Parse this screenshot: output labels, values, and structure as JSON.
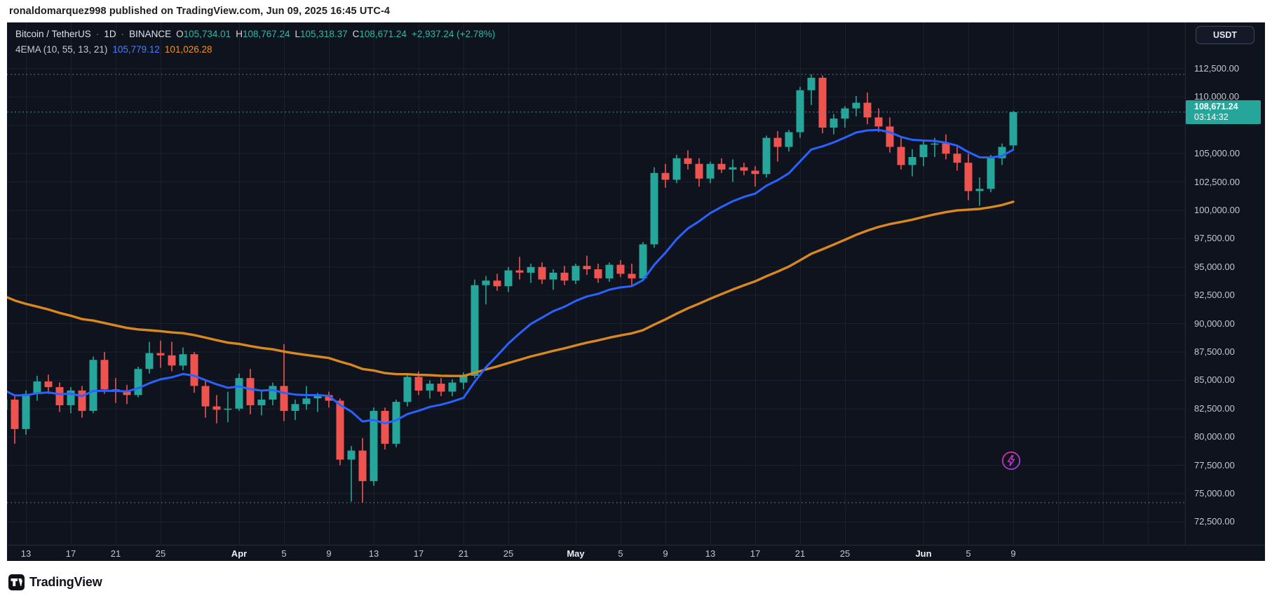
{
  "publish_bar": {
    "text": "ronaldomarquez998 published on TradingView.com, Jun 09, 2025 16:45 UTC-4"
  },
  "header": {
    "symbol": "Bitcoin / TetherUS",
    "sep": "·",
    "interval": "1D",
    "exchange": "BINANCE",
    "ohlc": {
      "o_label": "O",
      "o": "105,734.01",
      "h_label": "H",
      "h": "108,767.24",
      "l_label": "L",
      "l": "105,318.37",
      "c_label": "C",
      "c": "108,671.24",
      "change": "+2,937.24 (+2.78%)"
    },
    "indicator": {
      "label": "4EMA (10, 55, 13, 21)",
      "value_fast": "105,779.12",
      "value_slow": "101,026.28"
    }
  },
  "price_scale": {
    "currency_button": "USDT",
    "labels": [
      {
        "text": "112,500.00",
        "price": 112500
      },
      {
        "text": "110,000.00",
        "price": 110000
      },
      {
        "text": "105,000.00",
        "price": 105000
      },
      {
        "text": "102,500.00",
        "price": 102500
      },
      {
        "text": "100,000.00",
        "price": 100000
      },
      {
        "text": "97,500.00",
        "price": 97500
      },
      {
        "text": "95,000.00",
        "price": 95000
      },
      {
        "text": "92,500.00",
        "price": 92500
      },
      {
        "text": "90,000.00",
        "price": 90000
      },
      {
        "text": "87,500.00",
        "price": 87500
      },
      {
        "text": "85,000.00",
        "price": 85000
      },
      {
        "text": "82,500.00",
        "price": 82500
      },
      {
        "text": "80,000.00",
        "price": 80000
      },
      {
        "text": "77,500.00",
        "price": 77500
      },
      {
        "text": "75,000.00",
        "price": 75000
      },
      {
        "text": "72,500.00",
        "price": 72500
      }
    ],
    "badge": {
      "price": "108,671.24",
      "countdown": "03:14:32"
    }
  },
  "time_scale": {
    "labels": [
      {
        "text": "13",
        "index": 2,
        "month": false
      },
      {
        "text": "17",
        "index": 6,
        "month": false
      },
      {
        "text": "21",
        "index": 10,
        "month": false
      },
      {
        "text": "25",
        "index": 14,
        "month": false
      },
      {
        "text": "Apr",
        "index": 21,
        "month": true
      },
      {
        "text": "5",
        "index": 25,
        "month": false
      },
      {
        "text": "9",
        "index": 29,
        "month": false
      },
      {
        "text": "13",
        "index": 33,
        "month": false
      },
      {
        "text": "17",
        "index": 37,
        "month": false
      },
      {
        "text": "21",
        "index": 41,
        "month": false
      },
      {
        "text": "25",
        "index": 45,
        "month": false
      },
      {
        "text": "May",
        "index": 51,
        "month": true
      },
      {
        "text": "5",
        "index": 55,
        "month": false
      },
      {
        "text": "9",
        "index": 59,
        "month": false
      },
      {
        "text": "13",
        "index": 63,
        "month": false
      },
      {
        "text": "17",
        "index": 67,
        "month": false
      },
      {
        "text": "21",
        "index": 71,
        "month": false
      },
      {
        "text": "25",
        "index": 75,
        "month": false
      },
      {
        "text": "Jun",
        "index": 82,
        "month": true
      },
      {
        "text": "5",
        "index": 86,
        "month": false
      },
      {
        "text": "9",
        "index": 90,
        "month": false
      }
    ],
    "extra_gridline_indices": [
      94,
      98,
      102
    ]
  },
  "footer": {
    "brand": "TradingView"
  },
  "colors": {
    "background": "#0f131d",
    "grid": "#1b2130",
    "axis_border": "#262b3a",
    "up": "#26a69a",
    "down": "#ef5350",
    "ema_fast": "#2962ff",
    "ema_slow": "#d9881f",
    "axis_text": "#c3c7d0",
    "badge_bg": "#26a69a",
    "level_dotted": "rgba(225,231,242,0.55)",
    "price_line": "#26a69a",
    "spark_pink": "#f12bb6",
    "spark_violet": "#a44bf3"
  },
  "chart_data": {
    "type": "candlestick",
    "title": "Bitcoin / TetherUS · 1D · BINANCE",
    "interval": "1D",
    "x_start_date": "2025-03-11",
    "x_end_date": "2025-06-09",
    "ylim": [
      70500,
      116600
    ],
    "grid_price_step": 2500,
    "price_gridlines": [
      72500,
      75000,
      77500,
      80000,
      82500,
      85000,
      87500,
      90000,
      92500,
      95000,
      97500,
      100000,
      102500,
      105000,
      107500,
      110000,
      112500
    ],
    "levels": {
      "high_line": 112000,
      "low_line": 74200,
      "last_price": 108671.24
    },
    "last_bar": {
      "open": 105734.01,
      "high": 108767.24,
      "low": 105318.37,
      "close": 108671.24,
      "change": 2937.24,
      "change_pct": 2.78
    },
    "indicators": [
      {
        "name": "EMA",
        "period": 13,
        "color": "#2962ff",
        "seed": 84300,
        "last_value": 105779.12
      },
      {
        "name": "EMA",
        "period": 55,
        "color": "#d9881f",
        "seed": 92800,
        "last_value": 101026.28
      }
    ],
    "dates": [
      "Mar 11",
      "Mar 12",
      "Mar 13",
      "Mar 14",
      "Mar 15",
      "Mar 16",
      "Mar 17",
      "Mar 18",
      "Mar 19",
      "Mar 20",
      "Mar 21",
      "Mar 22",
      "Mar 23",
      "Mar 24",
      "Mar 25",
      "Mar 26",
      "Mar 27",
      "Mar 28",
      "Mar 29",
      "Mar 30",
      "Mar 31",
      "Apr 1",
      "Apr 2",
      "Apr 3",
      "Apr 4",
      "Apr 5",
      "Apr 6",
      "Apr 7",
      "Apr 8",
      "Apr 9",
      "Apr 10",
      "Apr 11",
      "Apr 12",
      "Apr 13",
      "Apr 14",
      "Apr 15",
      "Apr 16",
      "Apr 17",
      "Apr 18",
      "Apr 19",
      "Apr 20",
      "Apr 21",
      "Apr 22",
      "Apr 23",
      "Apr 24",
      "Apr 25",
      "Apr 26",
      "Apr 27",
      "Apr 28",
      "Apr 29",
      "Apr 30",
      "May 1",
      "May 2",
      "May 3",
      "May 4",
      "May 5",
      "May 6",
      "May 7",
      "May 8",
      "May 9",
      "May 10",
      "May 11",
      "May 12",
      "May 13",
      "May 14",
      "May 15",
      "May 16",
      "May 17",
      "May 18",
      "May 19",
      "May 20",
      "May 21",
      "May 22",
      "May 23",
      "May 24",
      "May 25",
      "May 26",
      "May 27",
      "May 28",
      "May 29",
      "May 30",
      "May 31",
      "Jun 1",
      "Jun 2",
      "Jun 3",
      "Jun 4",
      "Jun 5",
      "Jun 6",
      "Jun 7",
      "Jun 8",
      "Jun 9"
    ],
    "candles": [
      [
        82400,
        83600,
        80900,
        83300
      ],
      [
        83300,
        83700,
        79400,
        80700
      ],
      [
        80700,
        84100,
        80200,
        83800
      ],
      [
        83800,
        85400,
        83200,
        84900
      ],
      [
        84900,
        85500,
        83800,
        84400
      ],
      [
        84400,
        84800,
        82200,
        82800
      ],
      [
        82800,
        84400,
        82100,
        84100
      ],
      [
        84100,
        84500,
        81700,
        82300
      ],
      [
        82300,
        87100,
        82100,
        86800
      ],
      [
        86800,
        87500,
        83800,
        84200
      ],
      [
        84200,
        85200,
        83000,
        84000
      ],
      [
        84000,
        84600,
        82900,
        83700
      ],
      [
        83700,
        86200,
        83500,
        86000
      ],
      [
        86000,
        88400,
        85600,
        87400
      ],
      [
        87400,
        88500,
        86100,
        87200
      ],
      [
        87200,
        88400,
        85800,
        86300
      ],
      [
        86300,
        87900,
        85900,
        87300
      ],
      [
        87300,
        87500,
        83900,
        84500
      ],
      [
        84500,
        85100,
        81700,
        82700
      ],
      [
        82700,
        83700,
        81200,
        82400
      ],
      [
        82400,
        84000,
        81300,
        82500
      ],
      [
        82500,
        85600,
        82300,
        85200
      ],
      [
        85200,
        86000,
        82000,
        82800
      ],
      [
        82800,
        84100,
        81900,
        83300
      ],
      [
        83300,
        84800,
        82800,
        84500
      ],
      [
        84500,
        88200,
        81400,
        82300
      ],
      [
        82300,
        83300,
        81500,
        82900
      ],
      [
        82900,
        84500,
        82400,
        83400
      ],
      [
        83400,
        83900,
        82200,
        83700
      ],
      [
        83700,
        84000,
        82600,
        83200
      ],
      [
        83200,
        83400,
        77500,
        78000
      ],
      [
        78000,
        79200,
        74300,
        78800
      ],
      [
        78800,
        79900,
        74200,
        76100
      ],
      [
        76100,
        82600,
        75700,
        82300
      ],
      [
        82300,
        82600,
        78900,
        79400
      ],
      [
        79400,
        83300,
        79100,
        83100
      ],
      [
        83100,
        85600,
        82700,
        85300
      ],
      [
        85300,
        85800,
        83700,
        84100
      ],
      [
        84100,
        85000,
        83400,
        84700
      ],
      [
        84700,
        85200,
        83600,
        84000
      ],
      [
        84000,
        85100,
        83600,
        84800
      ],
      [
        84800,
        85700,
        84200,
        85400
      ],
      [
        85400,
        93900,
        85200,
        93400
      ],
      [
        93400,
        94200,
        91700,
        93800
      ],
      [
        93800,
        94400,
        92900,
        93300
      ],
      [
        93300,
        95000,
        92800,
        94700
      ],
      [
        94700,
        95900,
        93900,
        94500
      ],
      [
        94500,
        95300,
        93600,
        95000
      ],
      [
        95000,
        95400,
        93500,
        93900
      ],
      [
        93900,
        94800,
        93000,
        94500
      ],
      [
        94500,
        95100,
        93400,
        93800
      ],
      [
        93800,
        95300,
        93500,
        95100
      ],
      [
        95100,
        96000,
        94300,
        94800
      ],
      [
        94800,
        95300,
        93600,
        94000
      ],
      [
        94000,
        95400,
        93700,
        95200
      ],
      [
        95200,
        95600,
        94100,
        94400
      ],
      [
        94400,
        95300,
        93300,
        94000
      ],
      [
        94000,
        97200,
        93800,
        97000
      ],
      [
        97000,
        103800,
        96700,
        103300
      ],
      [
        103300,
        104100,
        102000,
        102700
      ],
      [
        102700,
        104900,
        102400,
        104600
      ],
      [
        104600,
        105300,
        103600,
        104100
      ],
      [
        104100,
        104600,
        102100,
        102800
      ],
      [
        102800,
        104300,
        102400,
        104100
      ],
      [
        104100,
        104600,
        103300,
        103600
      ],
      [
        103600,
        104500,
        102500,
        103800
      ],
      [
        103800,
        104200,
        103100,
        103500
      ],
      [
        103500,
        103900,
        102100,
        103200
      ],
      [
        103200,
        106600,
        102900,
        106400
      ],
      [
        106400,
        107000,
        104300,
        105600
      ],
      [
        105600,
        107100,
        105200,
        106900
      ],
      [
        106900,
        110900,
        106400,
        110600
      ],
      [
        110600,
        112000,
        109300,
        111700
      ],
      [
        111700,
        111900,
        106800,
        107300
      ],
      [
        107300,
        108500,
        106700,
        108100
      ],
      [
        108100,
        109200,
        107300,
        109000
      ],
      [
        109000,
        110100,
        108300,
        109500
      ],
      [
        109500,
        110400,
        107600,
        108200
      ],
      [
        108200,
        109000,
        106900,
        107400
      ],
      [
        107400,
        108200,
        105100,
        105600
      ],
      [
        105600,
        106400,
        103600,
        104000
      ],
      [
        104000,
        105400,
        103000,
        104700
      ],
      [
        104700,
        106200,
        103900,
        105800
      ],
      [
        105800,
        106400,
        104700,
        105900
      ],
      [
        105900,
        106700,
        104500,
        105000
      ],
      [
        105000,
        105700,
        103500,
        104200
      ],
      [
        104200,
        105000,
        100900,
        101700
      ],
      [
        101700,
        102900,
        100400,
        101900
      ],
      [
        101900,
        104900,
        101600,
        104600
      ],
      [
        104600,
        105900,
        104000,
        105600
      ],
      [
        105734.01,
        108767.24,
        105318.37,
        108671.24
      ]
    ]
  }
}
